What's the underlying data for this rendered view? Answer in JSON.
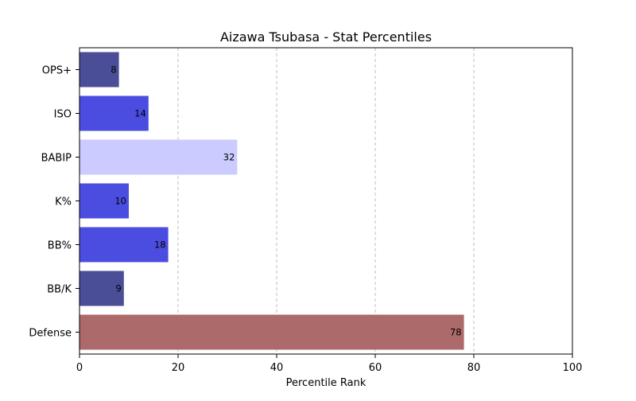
{
  "chart_data": {
    "type": "bar",
    "orientation": "horizontal",
    "title": "Aizawa Tsubasa - Stat Percentiles",
    "xlabel": "Percentile Rank",
    "ylabel": "",
    "xlim": [
      0,
      100
    ],
    "xticks": [
      0,
      20,
      40,
      60,
      80,
      100
    ],
    "grid": "x-dashed",
    "categories": [
      "OPS+",
      "ISO",
      "BABIP",
      "K%",
      "BB%",
      "BB/K",
      "Defense"
    ],
    "values": [
      8,
      14,
      32,
      10,
      18,
      9,
      78
    ],
    "colors": [
      "#4a4e96",
      "#4b4de0",
      "#cccbff",
      "#4b4de0",
      "#4b4de0",
      "#4a4e96",
      "#ad6a6a"
    ]
  }
}
